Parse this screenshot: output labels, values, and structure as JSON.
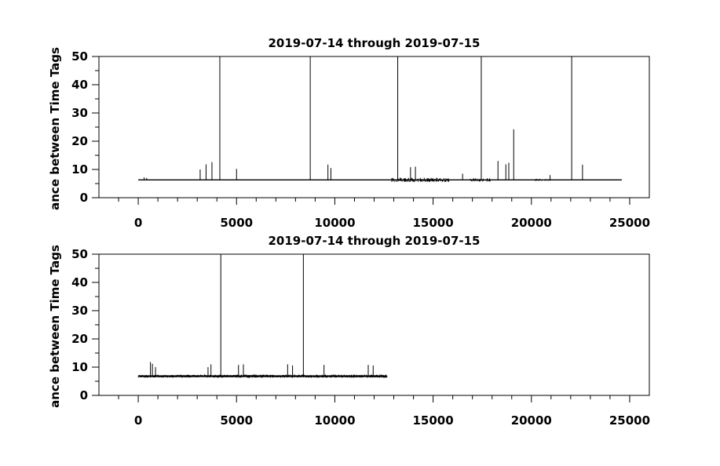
{
  "chart_data": [
    {
      "type": "line",
      "title": "2019-07-14 through 2019-07-15",
      "ylabel": "ance between Time Tags",
      "xlabel": "",
      "xlim": [
        -2000,
        26000
      ],
      "ylim": [
        0,
        50
      ],
      "xticks": [
        0,
        5000,
        10000,
        15000,
        20000,
        25000
      ],
      "yticks": [
        0,
        10,
        20,
        30,
        40,
        50
      ],
      "grid": false,
      "baseline": 6.3,
      "x_range": [
        0,
        24600
      ],
      "spikes": [
        {
          "x": 300,
          "y": 7.2
        },
        {
          "x": 430,
          "y": 7.0
        },
        {
          "x": 3150,
          "y": 10
        },
        {
          "x": 3450,
          "y": 11.8
        },
        {
          "x": 3750,
          "y": 12.6
        },
        {
          "x": 4150,
          "y": 50
        },
        {
          "x": 5000,
          "y": 10.2
        },
        {
          "x": 8750,
          "y": 50
        },
        {
          "x": 9650,
          "y": 11.7
        },
        {
          "x": 9800,
          "y": 10.5
        },
        {
          "x": 13200,
          "y": 50
        },
        {
          "x": 13850,
          "y": 10.8
        },
        {
          "x": 14100,
          "y": 11
        },
        {
          "x": 16500,
          "y": 8.5
        },
        {
          "x": 17450,
          "y": 50
        },
        {
          "x": 18300,
          "y": 13
        },
        {
          "x": 18700,
          "y": 11.8
        },
        {
          "x": 18850,
          "y": 12.4
        },
        {
          "x": 19100,
          "y": 24.2
        },
        {
          "x": 20950,
          "y": 8
        },
        {
          "x": 22050,
          "y": 50
        },
        {
          "x": 22600,
          "y": 11.7
        }
      ],
      "noisy_segments": [
        {
          "x0": 12900,
          "x1": 15800,
          "amp": 1.2
        },
        {
          "x0": 16900,
          "x1": 17900,
          "amp": 1.0
        },
        {
          "x0": 20200,
          "x1": 21000,
          "amp": 0.6
        }
      ]
    },
    {
      "type": "line",
      "title": "2019-07-14 through 2019-07-15",
      "ylabel": "ance between Time Tags",
      "xlabel": "",
      "xlim": [
        -2000,
        26000
      ],
      "ylim": [
        0,
        50
      ],
      "xticks": [
        0,
        5000,
        10000,
        15000,
        20000,
        25000
      ],
      "yticks": [
        0,
        10,
        20,
        30,
        40,
        50
      ],
      "grid": false,
      "baseline": 6.8,
      "x_range": [
        0,
        12650
      ],
      "spikes": [
        {
          "x": 620,
          "y": 11.8
        },
        {
          "x": 720,
          "y": 11.2
        },
        {
          "x": 880,
          "y": 10
        },
        {
          "x": 3550,
          "y": 10
        },
        {
          "x": 3700,
          "y": 11
        },
        {
          "x": 4200,
          "y": 50
        },
        {
          "x": 5100,
          "y": 10.8
        },
        {
          "x": 5350,
          "y": 11
        },
        {
          "x": 7600,
          "y": 11
        },
        {
          "x": 7850,
          "y": 10.6
        },
        {
          "x": 8400,
          "y": 50
        },
        {
          "x": 9450,
          "y": 10.8
        },
        {
          "x": 11700,
          "y": 10.8
        },
        {
          "x": 11950,
          "y": 10.6
        }
      ],
      "noisy_segments": [
        {
          "x0": 0,
          "x1": 12650,
          "amp": 0.9
        }
      ]
    }
  ]
}
